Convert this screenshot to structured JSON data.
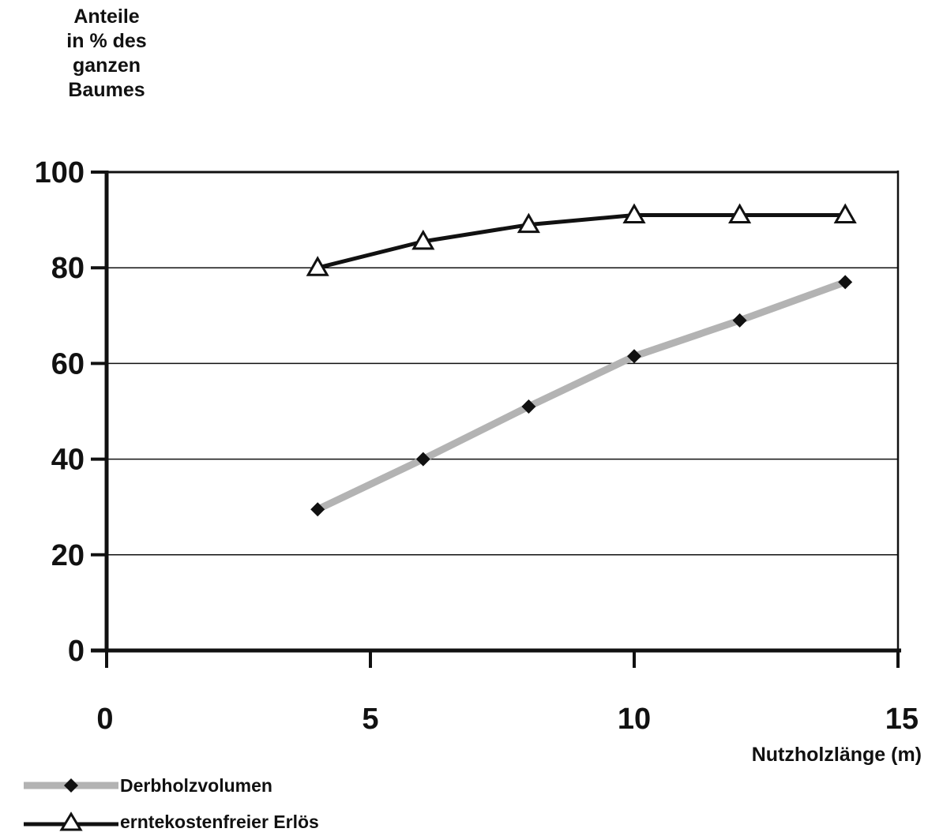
{
  "chart_data": {
    "type": "line",
    "ylabel": "Anteile\nin % des\nganzen\nBaumes",
    "xlabel": "Nutzholzlänge (m)",
    "xlim": [
      0,
      15
    ],
    "ylim": [
      0,
      100
    ],
    "xticks": [
      0,
      5,
      10,
      15
    ],
    "yticks": [
      0,
      20,
      40,
      60,
      80,
      100
    ],
    "grid": "horizontal",
    "legend_position": "bottom-left",
    "x": [
      4,
      6,
      8,
      10,
      12,
      14
    ],
    "series": [
      {
        "name": "Derbholzvolumen",
        "marker": "diamond",
        "color": "#b3b3b3",
        "marker_color": "#111111",
        "values": [
          29.5,
          40,
          51,
          61.5,
          69,
          77
        ]
      },
      {
        "name": "erntekostenfreier Erlös",
        "marker": "triangle-open",
        "color": "#111111",
        "marker_color": "#111111",
        "values": [
          80,
          85.5,
          89,
          91,
          91,
          91
        ]
      }
    ]
  }
}
